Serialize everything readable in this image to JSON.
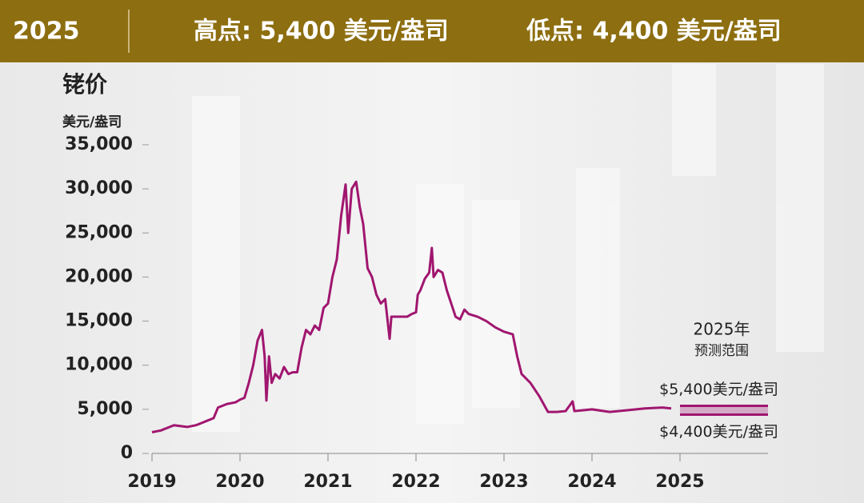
{
  "header": {
    "year": "2025",
    "high": "高点: 5,400 美元/盎司",
    "low": "低点: 4,400 美元/盎司"
  },
  "chart_data": {
    "type": "line",
    "title": "铑价",
    "y_label": "美元/盎司",
    "x": [
      2019.0,
      2019.1,
      2019.25,
      2019.4,
      2019.5,
      2019.6,
      2019.7,
      2019.75,
      2019.85,
      2019.95,
      2020.0,
      2020.05,
      2020.1,
      2020.15,
      2020.2,
      2020.25,
      2020.28,
      2020.3,
      2020.33,
      2020.36,
      2020.4,
      2020.45,
      2020.5,
      2020.55,
      2020.6,
      2020.65,
      2020.7,
      2020.75,
      2020.8,
      2020.85,
      2020.9,
      2020.95,
      2021.0,
      2021.05,
      2021.1,
      2021.15,
      2021.2,
      2021.23,
      2021.27,
      2021.32,
      2021.36,
      2021.4,
      2021.45,
      2021.5,
      2021.55,
      2021.6,
      2021.65,
      2021.7,
      2021.72,
      2021.8,
      2021.9,
      2021.95,
      2022.0,
      2022.02,
      2022.05,
      2022.1,
      2022.15,
      2022.18,
      2022.2,
      2022.25,
      2022.3,
      2022.35,
      2022.4,
      2022.45,
      2022.5,
      2022.55,
      2022.6,
      2022.7,
      2022.8,
      2022.9,
      2023.0,
      2023.1,
      2023.15,
      2023.2,
      2023.3,
      2023.4,
      2023.5,
      2023.6,
      2023.7,
      2023.78,
      2023.8,
      2023.9,
      2024.0,
      2024.2,
      2024.4,
      2024.6,
      2024.8,
      2024.9
    ],
    "series": [
      {
        "color": "#a0166f",
        "values": [
          2400,
          2600,
          3200,
          3000,
          3200,
          3600,
          4000,
          5200,
          5600,
          5800,
          6100,
          6300,
          8000,
          10000,
          12800,
          14000,
          11000,
          6000,
          11000,
          8000,
          9000,
          8500,
          9800,
          9000,
          9200,
          9200,
          12000,
          14000,
          13500,
          14500,
          14000,
          16500,
          17000,
          20000,
          22000,
          27000,
          30500,
          25000,
          30000,
          30800,
          28000,
          26000,
          21000,
          20000,
          18000,
          17000,
          17500,
          13000,
          15500,
          15500,
          15500,
          15800,
          16000,
          18000,
          18500,
          19800,
          20500,
          23300,
          20000,
          20800,
          20500,
          18500,
          17000,
          15500,
          15200,
          16300,
          15800,
          15500,
          15000,
          14300,
          13800,
          13500,
          11000,
          9000,
          8000,
          6500,
          4700,
          4700,
          4800,
          5900,
          4800,
          4900,
          5000,
          4700,
          4900,
          5100,
          5200,
          5100
        ]
      }
    ],
    "forecast": {
      "title": [
        "2025年",
        "预测范围"
      ],
      "x": [
        2025,
        2026
      ],
      "values": [
        5400,
        4400
      ],
      "value_labels": [
        "$5,400美元/盎司",
        "$4,400美元/盎司"
      ],
      "color": "#a0166f"
    },
    "xlim": [
      2019,
      2026
    ],
    "xticks": [
      2019,
      2020,
      2021,
      2022,
      2023,
      2024,
      2025
    ],
    "ylim": [
      0,
      35000
    ],
    "yticks": [
      0,
      {
        "value": 5000,
        "label": "5,000"
      },
      {
        "value": 10000,
        "label": "10,000"
      },
      {
        "value": 15000,
        "label": "15,000"
      },
      {
        "value": 20000,
        "label": "20,000"
      },
      {
        "value": 25000,
        "label": "25,000"
      },
      {
        "value": 30000,
        "label": "30,000"
      },
      {
        "value": 35000,
        "label": "35,000"
      }
    ]
  }
}
